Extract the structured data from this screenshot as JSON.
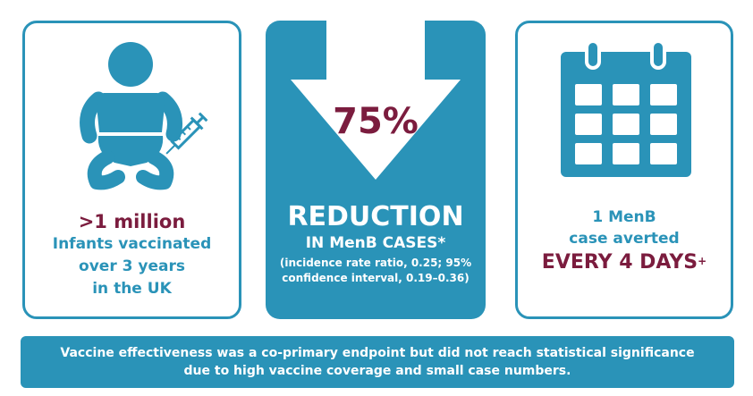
{
  "colors": {
    "accent_blue": "#2a93b8",
    "maroon": "#7b1c3e",
    "white": "#ffffff"
  },
  "left_card": {
    "icon": "baby-with-syringe-icon",
    "stat": ">1 million",
    "line1": "Infants vaccinated",
    "line2": "over 3 years",
    "line3": "in the UK"
  },
  "middle_card": {
    "icon": "down-arrow-icon",
    "percent": "75%",
    "headline": "REDUCTION",
    "subline": "IN MenB CASES*",
    "note_line1": "(incidence rate ratio, 0.25; 95%",
    "note_line2": "confidence interval, 0.19–0.36)"
  },
  "right_card": {
    "icon": "calendar-icon",
    "line1": "1 MenB",
    "line2": "case averted",
    "big": "EVERY 4 DAYS",
    "big_mark": "+"
  },
  "banner": {
    "line1": "Vaccine effectiveness was a co-primary endpoint but did not reach statistical significance",
    "line2": "due to high vaccine coverage and small case numbers."
  }
}
